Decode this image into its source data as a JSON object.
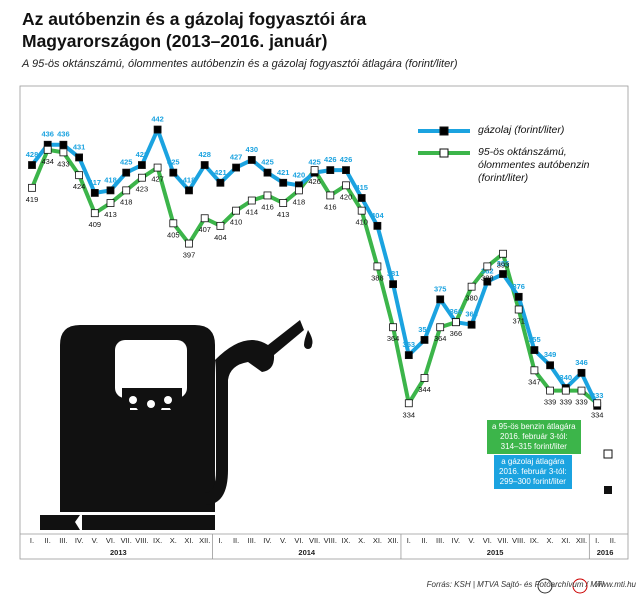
{
  "chart_data": {
    "type": "line",
    "title": "Az autóbenzin és a gázolaj fogyasztói ára Magyarországon (2013–2016. január)",
    "subtitle": "A 95-ös oktánszámú, ólommentes autóbenzin és a gázolaj fogyasztói átlagára (forint/liter)",
    "categories": [
      "I.",
      "II.",
      "III.",
      "IV.",
      "V.",
      "VI.",
      "VII.",
      "VIII.",
      "IX.",
      "X.",
      "XI.",
      "XII.",
      "I.",
      "II.",
      "III.",
      "IV.",
      "V.",
      "VI.",
      "VII.",
      "VIII.",
      "IX.",
      "X.",
      "XI.",
      "XII.",
      "I.",
      "II.",
      "III.",
      "IV.",
      "V.",
      "VI.",
      "VII.",
      "VIII.",
      "IX.",
      "X.",
      "XI.",
      "XII.",
      "I.",
      "II."
    ],
    "year_groups": [
      "2013",
      "2014",
      "2015",
      "2016"
    ],
    "series": [
      {
        "name": "gázolaj (forint/liter)",
        "color": "#1ba3e0",
        "marker_color": "#000000",
        "values": [
          428,
          436,
          436,
          431,
          417,
          418,
          425,
          428,
          442,
          425,
          418,
          428,
          421,
          427,
          430,
          425,
          421,
          420,
          425,
          426,
          426,
          415,
          404,
          381,
          353,
          359,
          375,
          366,
          365,
          382,
          385,
          376,
          355,
          349,
          340,
          346,
          333,
          null
        ]
      },
      {
        "name": "95-ös oktánszámú, ólommentes autóbenzin (forint/liter)",
        "color": "#3cb54a",
        "marker_color": "#ffffff",
        "values": [
          419,
          434,
          433,
          424,
          409,
          413,
          418,
          423,
          427,
          405,
          397,
          407,
          404,
          410,
          414,
          416,
          413,
          418,
          426,
          416,
          420,
          410,
          388,
          364,
          334,
          344,
          364,
          366,
          380,
          388,
          393,
          371,
          347,
          339,
          339,
          339,
          334,
          null
        ]
      }
    ],
    "ylim": [
      284,
      458
    ],
    "annotations": [
      "a 95-ös benzin átlagára\n2016. február 3-tól:\n314–315 forint/liter",
      "a gázolaj átlagára\n2016. február 3-tól:\n299–300 forint/liter"
    ],
    "source": "Forrás: KSH | MTVA Sajtó- és Fotóarchívum / MTI",
    "website": "www.mti.hu"
  }
}
